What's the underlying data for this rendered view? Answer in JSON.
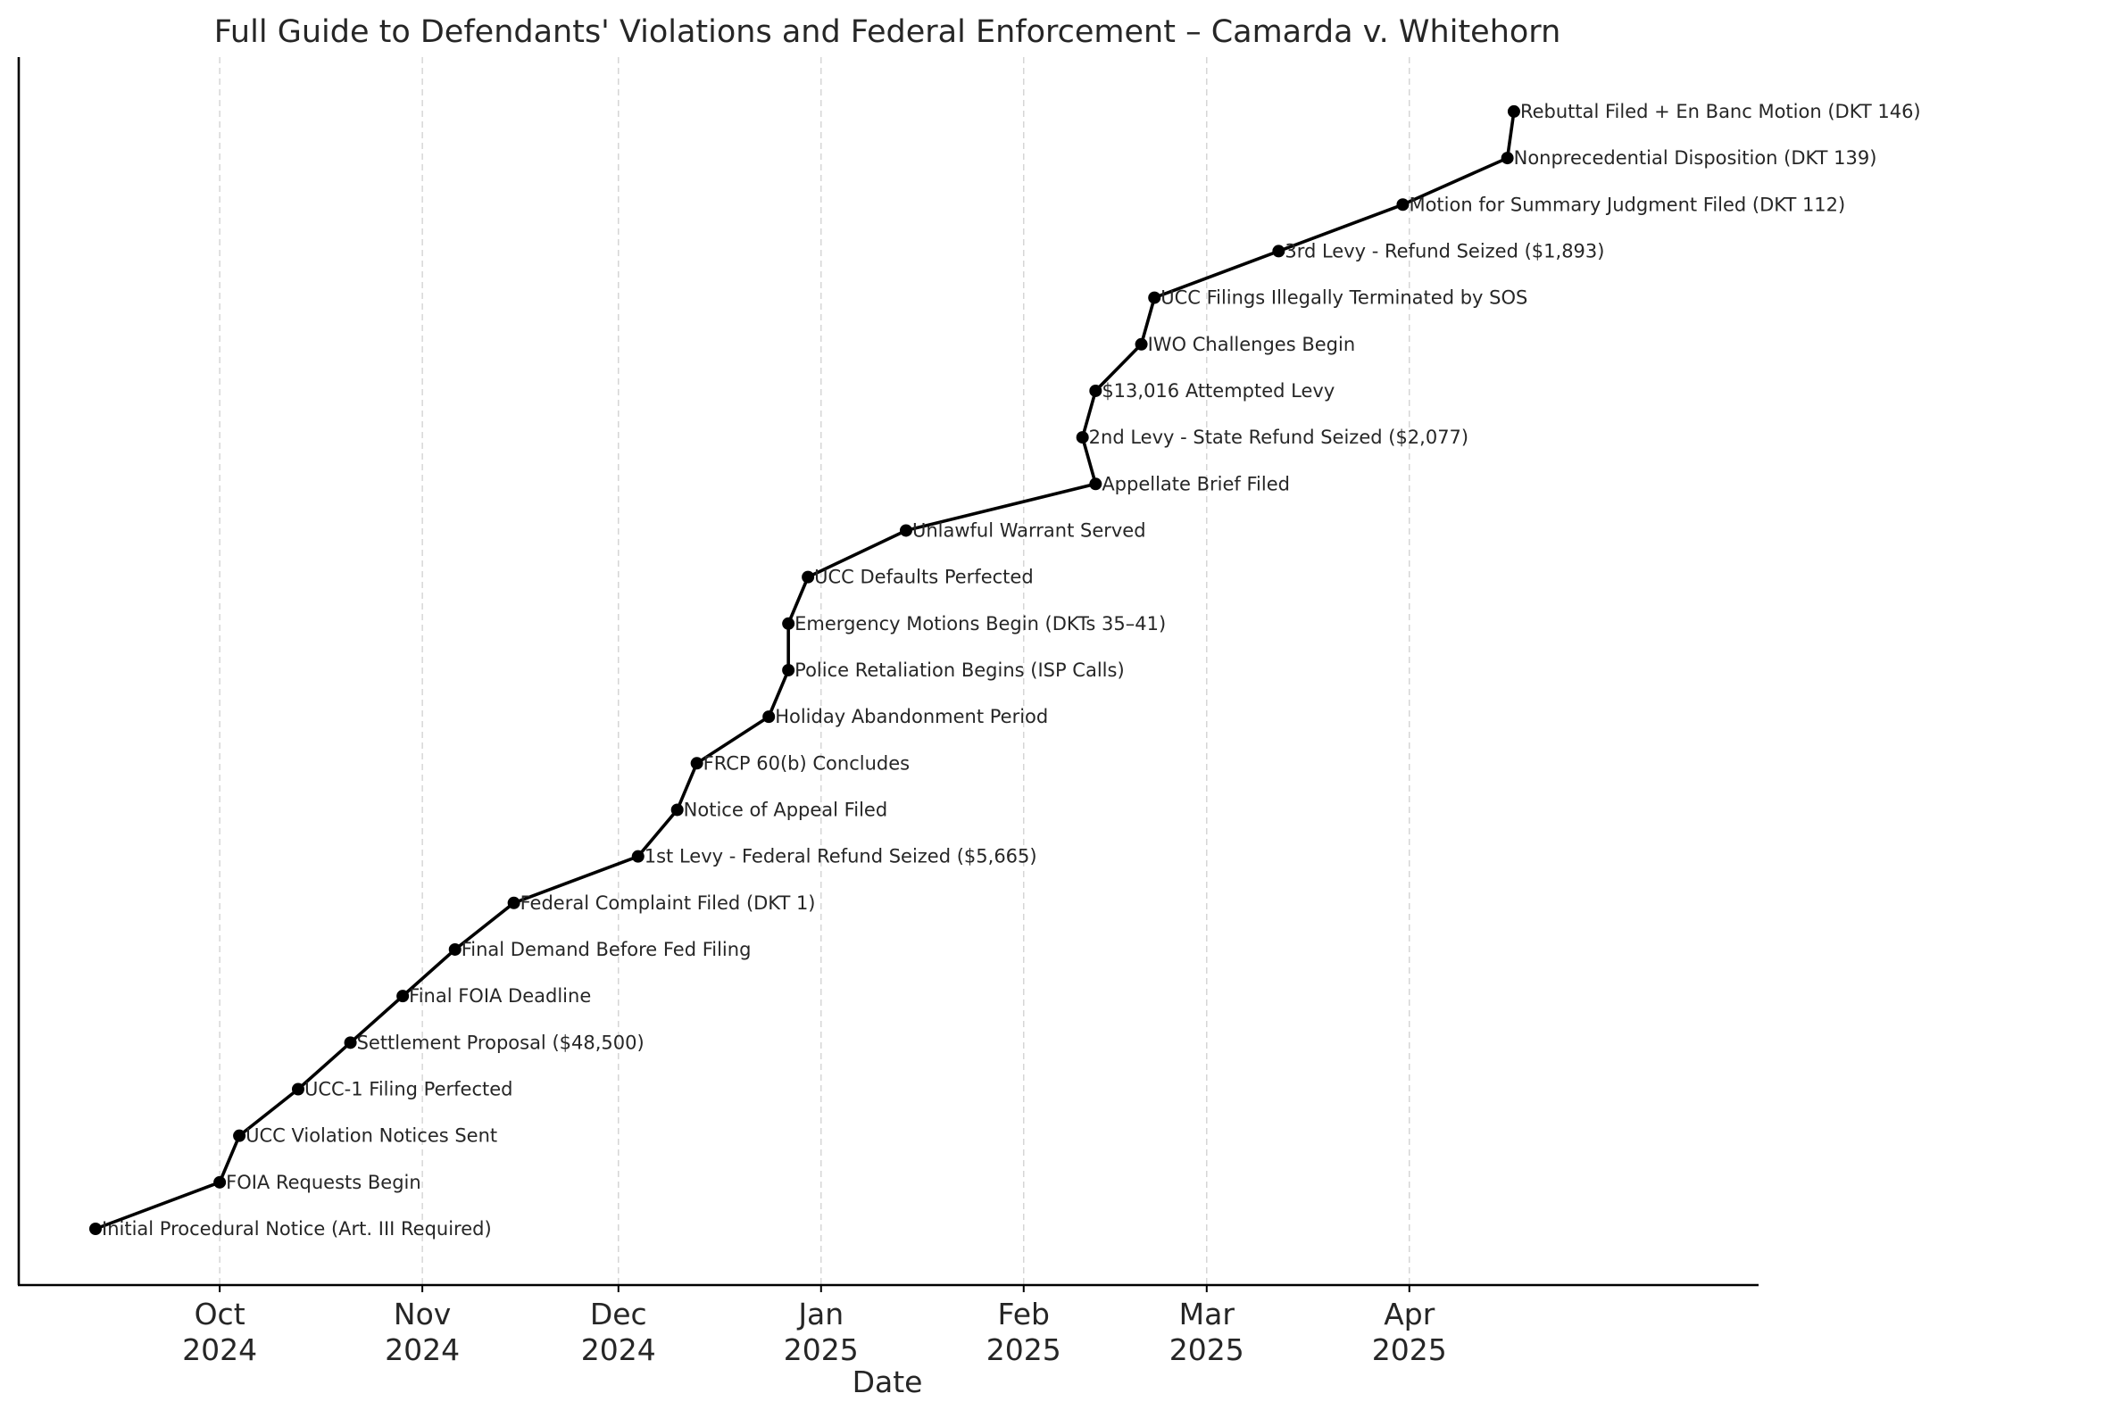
{
  "chart_data": {
    "type": "line",
    "title": "Full Guide to Defendants' Violations and Federal Enforcement – Camarda v. Whitehorn",
    "xlabel": "Date",
    "ylabel": "",
    "x_axis": "date",
    "xlim": [
      "2024-09-12",
      "2025-05-12"
    ],
    "grid": {
      "x": true,
      "y": false
    },
    "legend": "none",
    "x_ticks": [
      {
        "date": "2024-10-01",
        "month": "Oct",
        "year": "2024"
      },
      {
        "date": "2024-11-01",
        "month": "Nov",
        "year": "2024"
      },
      {
        "date": "2024-12-01",
        "month": "Dec",
        "year": "2024"
      },
      {
        "date": "2025-01-01",
        "month": "Jan",
        "year": "2025"
      },
      {
        "date": "2025-02-01",
        "month": "Feb",
        "year": "2025"
      },
      {
        "date": "2025-03-01",
        "month": "Mar",
        "year": "2025"
      },
      {
        "date": "2025-04-01",
        "month": "Apr",
        "year": "2025"
      }
    ],
    "events": [
      {
        "date": "2024-09-12",
        "label": "Initial Procedural Notice (Art. III Required)"
      },
      {
        "date": "2024-10-01",
        "label": "FOIA Requests Begin"
      },
      {
        "date": "2024-10-04",
        "label": "UCC Violation Notices Sent"
      },
      {
        "date": "2024-10-13",
        "label": "UCC-1 Filing Perfected"
      },
      {
        "date": "2024-10-21",
        "label": "Settlement Proposal ($48,500)"
      },
      {
        "date": "2024-10-29",
        "label": "Final FOIA Deadline"
      },
      {
        "date": "2024-11-06",
        "label": "Final Demand Before Fed Filing"
      },
      {
        "date": "2024-11-15",
        "label": "Federal Complaint Filed (DKT 1)"
      },
      {
        "date": "2024-12-04",
        "label": "1st Levy - Federal Refund Seized ($5,665)"
      },
      {
        "date": "2024-12-10",
        "label": "Notice of Appeal Filed"
      },
      {
        "date": "2024-12-13",
        "label": "FRCP 60(b) Concludes"
      },
      {
        "date": "2024-12-24",
        "label": "Holiday Abandonment Period"
      },
      {
        "date": "2024-12-27",
        "label": "Police Retaliation Begins (ISP Calls)"
      },
      {
        "date": "2024-12-27",
        "label": "Emergency Motions Begin (DKTs 35–41)"
      },
      {
        "date": "2024-12-30",
        "label": "UCC Defaults Perfected"
      },
      {
        "date": "2025-01-14",
        "label": "Unlawful Warrant Served"
      },
      {
        "date": "2025-02-12",
        "label": "Appellate Brief Filed"
      },
      {
        "date": "2025-02-10",
        "label": "2nd Levy - State Refund Seized ($2,077)"
      },
      {
        "date": "2025-02-12",
        "label": "$13,016 Attempted Levy"
      },
      {
        "date": "2025-02-19",
        "label": "IWO Challenges Begin"
      },
      {
        "date": "2025-02-21",
        "label": "UCC Filings Illegally Terminated by SOS"
      },
      {
        "date": "2025-03-12",
        "label": "3rd Levy - Refund Seized ($1,893)"
      },
      {
        "date": "2025-03-31",
        "label": "Motion for Summary Judgment Filed (DKT 112)"
      },
      {
        "date": "2025-04-16",
        "label": "Nonprecedential Disposition (DKT 139)"
      },
      {
        "date": "2025-04-17",
        "label": "Rebuttal Filed + En Banc Motion (DKT 146)"
      }
    ]
  }
}
